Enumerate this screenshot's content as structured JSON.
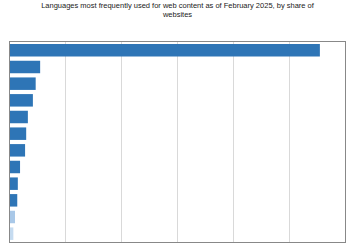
{
  "chart_data": {
    "type": "bar",
    "orientation": "horizontal",
    "title": "Languages most frequently used for web content as of February 2025, by share of\nwebsites",
    "categories": [
      null,
      null,
      null,
      null,
      null,
      null,
      null,
      null,
      null,
      null,
      null,
      null
    ],
    "values": [
      55.5,
      5.4,
      4.6,
      4.1,
      3.2,
      2.9,
      2.7,
      1.8,
      1.4,
      1.3,
      0.9,
      0.6
    ],
    "colors": [
      "#2e75b6",
      "#2e75b6",
      "#2e75b6",
      "#2e75b6",
      "#2e75b6",
      "#2e75b6",
      "#2e75b6",
      "#2e75b6",
      "#2e75b6",
      "#2e75b6",
      "#a9c8e8",
      "#c5dbf0"
    ],
    "xlim": [
      0,
      60
    ],
    "xticks": [
      10,
      20,
      30,
      40,
      50
    ],
    "grid": true,
    "tick_labels": false
  }
}
